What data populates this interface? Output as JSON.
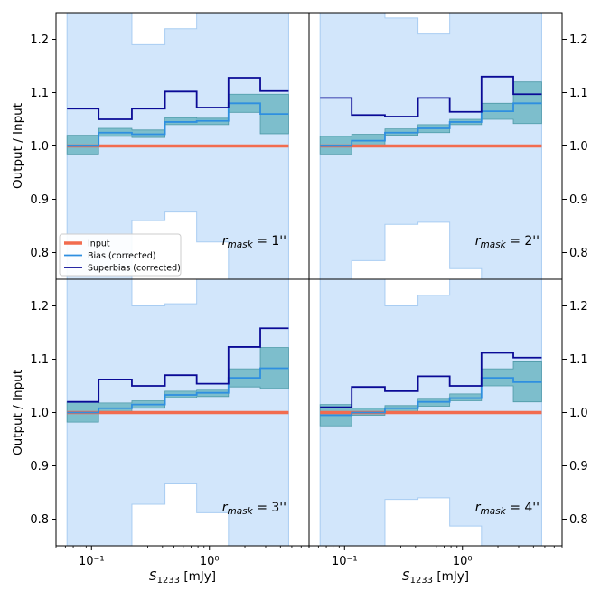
{
  "chart_data": {
    "type": "line",
    "layout": "2x2 grid, shared axes",
    "xscale": "log",
    "xlim": [
      0.05,
      7.0
    ],
    "ylim": [
      0.75,
      1.25
    ],
    "xlabel": "S_1233 [mJy]",
    "xlabel_main": "S",
    "xlabel_sub": "1233",
    "xlabel_unit": " [mJy]",
    "ylabel": "Output / Input",
    "x_tick_labels": [
      "10⁻¹",
      "10⁰"
    ],
    "y_tick_labels": [
      "0.8",
      "0.9",
      "1.0",
      "1.1",
      "1.2"
    ],
    "bin_edges": [
      0.062,
      0.115,
      0.22,
      0.42,
      0.78,
      1.45,
      2.7,
      4.7
    ],
    "legend": {
      "location": "lower-left of top-left panel",
      "entries": [
        {
          "name": "Input",
          "color": "#f26c4f"
        },
        {
          "name": "Bias (corrected)",
          "color": "#2e8fe0"
        },
        {
          "name": "Superbias (corrected)",
          "color": "#0a0a96"
        }
      ]
    },
    "colors": {
      "coverage_band": "#d2e6fb",
      "coverage_edge": "#a9cdf2",
      "bias_band": "#6fb6c3",
      "input": "#f26c4f",
      "bias": "#2e8fe0",
      "superbias": "#0a0a96"
    },
    "panels": [
      {
        "id": "panel-1",
        "label_main": "r",
        "label_sub": "mask",
        "label_value": " = 1''",
        "coverage_upper": [
          1.25,
          1.25,
          1.19,
          1.22,
          1.25,
          1.25,
          1.25
        ],
        "coverage_lower": [
          0.75,
          0.75,
          0.86,
          0.876,
          0.82,
          0.75,
          0.75
        ],
        "bias": [
          1.0,
          1.025,
          1.022,
          1.045,
          1.047,
          1.08,
          1.06
        ],
        "bias_lo": [
          0.985,
          1.018,
          1.016,
          1.04,
          1.04,
          1.063,
          1.023
        ],
        "bias_hi": [
          1.02,
          1.033,
          1.03,
          1.053,
          1.052,
          1.097,
          1.097
        ],
        "superbias": [
          1.07,
          1.05,
          1.07,
          1.102,
          1.072,
          1.128,
          1.103
        ]
      },
      {
        "id": "panel-2",
        "label_main": "r",
        "label_sub": "mask",
        "label_value": " = 2''",
        "coverage_upper": [
          1.25,
          1.25,
          1.24,
          1.21,
          1.25,
          1.25,
          1.25
        ],
        "coverage_lower": [
          0.75,
          0.785,
          0.853,
          0.857,
          0.77,
          0.75,
          0.75
        ],
        "bias": [
          1.0,
          1.01,
          1.025,
          1.033,
          1.045,
          1.065,
          1.08
        ],
        "bias_lo": [
          0.985,
          1.0,
          1.02,
          1.025,
          1.04,
          1.05,
          1.042
        ],
        "bias_hi": [
          1.018,
          1.022,
          1.032,
          1.04,
          1.05,
          1.08,
          1.12
        ],
        "superbias": [
          1.09,
          1.058,
          1.055,
          1.09,
          1.064,
          1.13,
          1.097
        ]
      },
      {
        "id": "panel-3",
        "label_main": "r",
        "label_sub": "mask",
        "label_value": " = 3''",
        "coverage_upper": [
          1.25,
          1.25,
          1.2,
          1.204,
          1.25,
          1.25,
          1.25
        ],
        "coverage_lower": [
          0.75,
          0.75,
          0.828,
          0.866,
          0.812,
          0.75,
          0.75
        ],
        "bias": [
          1.0,
          1.008,
          1.015,
          1.033,
          1.037,
          1.065,
          1.083
        ],
        "bias_lo": [
          0.982,
          1.002,
          1.008,
          1.028,
          1.03,
          1.048,
          1.045
        ],
        "bias_hi": [
          1.02,
          1.018,
          1.022,
          1.04,
          1.042,
          1.082,
          1.122
        ],
        "superbias": [
          1.02,
          1.062,
          1.05,
          1.07,
          1.054,
          1.123,
          1.158
        ]
      },
      {
        "id": "panel-4",
        "label_main": "r",
        "label_sub": "mask",
        "label_value": " = 4''",
        "coverage_upper": [
          1.25,
          1.25,
          1.2,
          1.22,
          1.25,
          1.25,
          1.25
        ],
        "coverage_lower": [
          0.75,
          0.75,
          0.837,
          0.84,
          0.787,
          0.75,
          0.75
        ],
        "bias": [
          0.995,
          1.0,
          1.008,
          1.02,
          1.027,
          1.065,
          1.057
        ],
        "bias_lo": [
          0.975,
          0.995,
          1.0,
          1.012,
          1.022,
          1.05,
          1.02
        ],
        "bias_hi": [
          1.015,
          1.008,
          1.013,
          1.025,
          1.035,
          1.082,
          1.095
        ],
        "superbias": [
          1.01,
          1.048,
          1.04,
          1.068,
          1.05,
          1.112,
          1.103
        ]
      }
    ]
  }
}
